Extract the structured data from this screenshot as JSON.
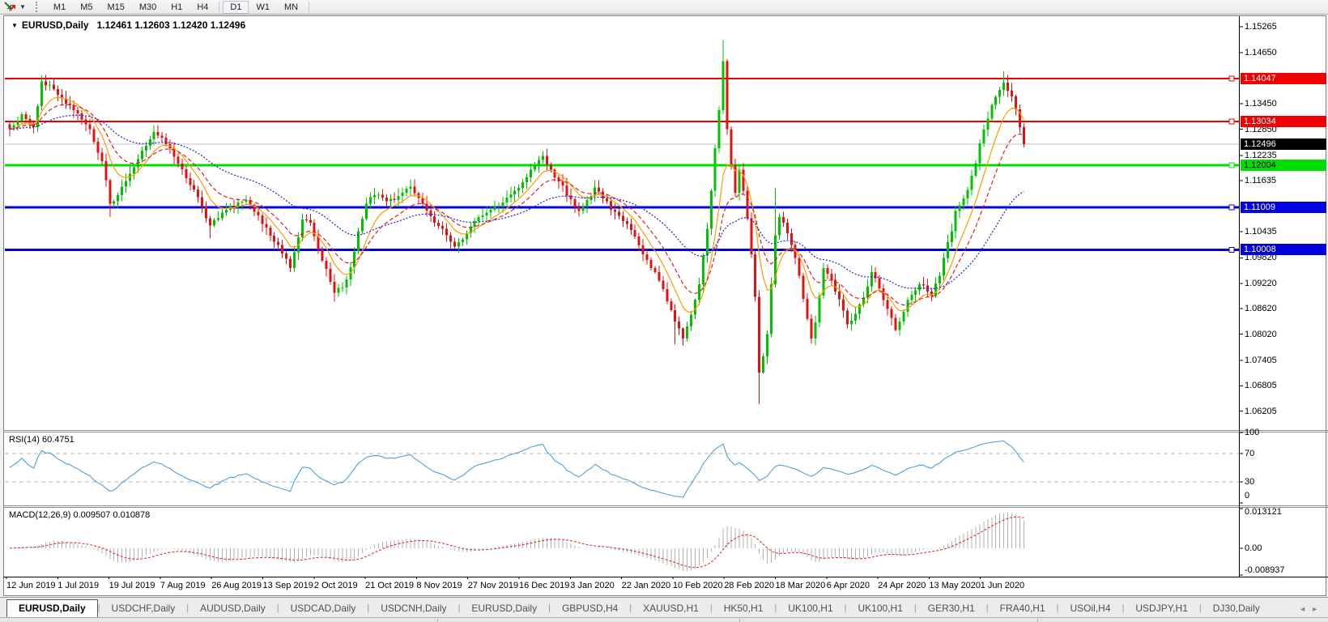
{
  "toolbar": {
    "timeframes": [
      "M1",
      "M5",
      "M15",
      "M30",
      "H1",
      "H4",
      "D1",
      "W1",
      "MN"
    ],
    "active_timeframe": "D1",
    "dropdown_caret": "▼"
  },
  "chart": {
    "symbol_title": "EURUSD,Daily",
    "ohlc_text": "1.12461 1.12603 1.12420 1.12496",
    "collapse_triangle": "▼"
  },
  "chart_data": {
    "type": "candlestick",
    "title": "EURUSD,Daily",
    "ohlc": {
      "open": 1.12461,
      "high": 1.12603,
      "low": 1.1242,
      "close": 1.12496
    },
    "candle_count": 254,
    "up_color": "#00c200",
    "down_color": "#e01212",
    "ylim": [
      1.0582,
      1.156
    ],
    "y_ticks": [
      1.15265,
      1.1465,
      1.1345,
      1.1285,
      1.12235,
      1.11635,
      1.10435,
      1.0982,
      1.0922,
      1.0862,
      1.0802,
      1.07405,
      1.06805,
      1.06205
    ],
    "x_tick_labels": [
      "12 Jun 2019",
      "1 Jul 2019",
      "19 Jul 2019",
      "7 Aug 2019",
      "26 Aug 2019",
      "13 Sep 2019",
      "2 Oct 2019",
      "21 Oct 2019",
      "8 Nov 2019",
      "27 Nov 2019",
      "16 Dec 2019",
      "3 Jan 2020",
      "22 Jan 2020",
      "10 Feb 2020",
      "28 Feb 2020",
      "18 Mar 2020",
      "6 Apr 2020",
      "24 Apr 2020",
      "13 May 2020",
      "1 Jun 2020"
    ],
    "levels": [
      {
        "value": 1.14047,
        "label": "1.14047",
        "color": "#f00000",
        "text": "#ffffff",
        "width": 2
      },
      {
        "value": 1.13034,
        "label": "1.13034",
        "color": "#f00000",
        "text": "#ffffff",
        "width": 2
      },
      {
        "value": 1.12004,
        "label": "1.12004",
        "color": "#00dd00",
        "text": "#000000",
        "width": 3
      },
      {
        "value": 1.11009,
        "label": "1.11009",
        "color": "#0000e0",
        "text": "#ffffff",
        "width": 3
      },
      {
        "value": 1.10008,
        "label": "1.10008",
        "color": "#0000e0",
        "text": "#ffffff",
        "width": 3
      }
    ],
    "current_price": {
      "value": 1.12496,
      "label": "1.12496",
      "line_color": "#c0c0c0",
      "tag_bg": "#000000",
      "tag_fg": "#ffffff"
    },
    "moving_averages": [
      {
        "name": "fast-ma",
        "period": 8,
        "color": "#ff9c00",
        "style": "solid"
      },
      {
        "name": "medium-ma",
        "period": 15,
        "color": "#e02020",
        "style": "dash"
      },
      {
        "name": "slow-ma",
        "period": 40,
        "color": "#2020cc",
        "style": "dot"
      }
    ],
    "price_anchors": [
      [
        0,
        1.1285
      ],
      [
        3,
        1.132
      ],
      [
        6,
        1.129
      ],
      [
        8,
        1.1398
      ],
      [
        11,
        1.138
      ],
      [
        13,
        1.1358
      ],
      [
        16,
        1.133
      ],
      [
        20,
        1.1285
      ],
      [
        23,
        1.121
      ],
      [
        25,
        1.111
      ],
      [
        27,
        1.113
      ],
      [
        30,
        1.118
      ],
      [
        33,
        1.1235
      ],
      [
        36,
        1.1278
      ],
      [
        39,
        1.125
      ],
      [
        41,
        1.122
      ],
      [
        44,
        1.117
      ],
      [
        47,
        1.1125
      ],
      [
        50,
        1.1058
      ],
      [
        52,
        1.1075
      ],
      [
        54,
        1.1095
      ],
      [
        57,
        1.1112
      ],
      [
        59,
        1.1118
      ],
      [
        61,
        1.109
      ],
      [
        63,
        1.1062
      ],
      [
        66,
        1.102
      ],
      [
        68,
        1.0992
      ],
      [
        70,
        1.0958
      ],
      [
        72,
        1.103
      ],
      [
        73,
        1.1072
      ],
      [
        75,
        1.1065
      ],
      [
        78,
        1.0975
      ],
      [
        81,
        1.09
      ],
      [
        83,
        1.0912
      ],
      [
        85,
        1.096
      ],
      [
        87,
        1.1045
      ],
      [
        89,
        1.111
      ],
      [
        91,
        1.113
      ],
      [
        94,
        1.1115
      ],
      [
        97,
        1.1128
      ],
      [
        100,
        1.115
      ],
      [
        103,
        1.111
      ],
      [
        106,
        1.1065
      ],
      [
        109,
        1.1035
      ],
      [
        111,
        1.1008
      ],
      [
        114,
        1.104
      ],
      [
        117,
        1.1078
      ],
      [
        120,
        1.1095
      ],
      [
        123,
        1.1112
      ],
      [
        126,
        1.114
      ],
      [
        129,
        1.1172
      ],
      [
        131,
        1.12
      ],
      [
        133,
        1.1222
      ],
      [
        135,
        1.119
      ],
      [
        137,
        1.1162
      ],
      [
        140,
        1.112
      ],
      [
        142,
        1.1092
      ],
      [
        144,
        1.1118
      ],
      [
        146,
        1.1148
      ],
      [
        148,
        1.1122
      ],
      [
        151,
        1.109
      ],
      [
        154,
        1.1062
      ],
      [
        156,
        1.1032
      ],
      [
        158,
        1.099
      ],
      [
        161,
        1.0948
      ],
      [
        164,
        1.088
      ],
      [
        166,
        1.0832
      ],
      [
        168,
        1.0792
      ],
      [
        170,
        1.0848
      ],
      [
        172,
        1.092
      ],
      [
        174,
        1.105
      ],
      [
        175,
        1.114
      ],
      [
        176,
        1.124
      ],
      [
        177,
        1.133
      ],
      [
        178,
        1.1445
      ],
      [
        179,
        1.1285
      ],
      [
        180,
        1.12
      ],
      [
        181,
        1.1135
      ],
      [
        182,
        1.119
      ],
      [
        183,
        1.114
      ],
      [
        184,
        1.1075
      ],
      [
        185,
        1.099
      ],
      [
        186,
        1.089
      ],
      [
        187,
        1.0712
      ],
      [
        188,
        1.075
      ],
      [
        189,
        1.0802
      ],
      [
        190,
        1.092
      ],
      [
        191,
        1.1035
      ],
      [
        192,
        1.1078
      ],
      [
        194,
        1.104
      ],
      [
        195,
        1.1012
      ],
      [
        197,
        1.094
      ],
      [
        198,
        1.0885
      ],
      [
        200,
        1.0792
      ],
      [
        201,
        1.083
      ],
      [
        203,
        1.0958
      ],
      [
        205,
        1.093
      ],
      [
        206,
        1.0902
      ],
      [
        208,
        1.0858
      ],
      [
        209,
        1.0825
      ],
      [
        211,
        1.085
      ],
      [
        212,
        1.0872
      ],
      [
        214,
        1.0915
      ],
      [
        215,
        1.0948
      ],
      [
        217,
        1.091
      ],
      [
        218,
        1.0882
      ],
      [
        220,
        1.084
      ],
      [
        221,
        1.0812
      ],
      [
        223,
        1.0855
      ],
      [
        224,
        1.0882
      ],
      [
        226,
        1.0905
      ],
      [
        227,
        1.092
      ],
      [
        229,
        1.0902
      ],
      [
        230,
        1.0892
      ],
      [
        232,
        1.094
      ],
      [
        233,
        1.0982
      ],
      [
        235,
        1.1045
      ],
      [
        236,
        1.1092
      ],
      [
        238,
        1.1122
      ],
      [
        239,
        1.1142
      ],
      [
        241,
        1.1205
      ],
      [
        242,
        1.1252
      ],
      [
        244,
        1.131
      ],
      [
        245,
        1.1342
      ],
      [
        247,
        1.1378
      ],
      [
        248,
        1.1395
      ],
      [
        250,
        1.1362
      ],
      [
        251,
        1.1332
      ],
      [
        252,
        1.129
      ],
      [
        253,
        1.12496
      ]
    ],
    "wick_overrides": [
      {
        "i": 8,
        "high": 1.1412
      },
      {
        "i": 25,
        "low": 1.1078
      },
      {
        "i": 50,
        "low": 1.1027
      },
      {
        "i": 81,
        "low": 1.0879
      },
      {
        "i": 166,
        "low": 1.0778
      },
      {
        "i": 178,
        "high": 1.1495
      },
      {
        "i": 187,
        "low": 1.0637
      },
      {
        "i": 191,
        "high": 1.1147
      },
      {
        "i": 248,
        "high": 1.1422
      }
    ],
    "rsi": {
      "label": "RSI(14) 60.4751",
      "name": "RSI(14)",
      "value_text": "60.4751",
      "period": 14,
      "color": "#4da0dd",
      "range": [
        0,
        100
      ],
      "ticks": [
        100,
        70,
        30,
        0
      ],
      "level_lines": [
        70,
        30
      ]
    },
    "macd": {
      "label": "MACD(12,26,9) 0.009507 0.010878",
      "name": "MACD(12,26,9)",
      "values_text": "0.009507 0.010878",
      "fast": 12,
      "slow": 26,
      "signal": 9,
      "histogram_color": "#b2b2b2",
      "signal_color": "#e02020",
      "range": [
        0.013121,
        -0.008937
      ],
      "ticks": [
        {
          "label": "0.013121",
          "value": 0.013121
        },
        {
          "label": "0.00",
          "value": 0
        },
        {
          "label": "-0.008937",
          "value": -0.008937
        }
      ]
    }
  },
  "tabbar": {
    "tabs": [
      "EURUSD,Daily",
      "USDCHF,Daily",
      "AUDUSD,Daily",
      "USDCAD,Daily",
      "USDCNH,Daily",
      "EURUSD,Daily",
      "GBPUSD,H4",
      "XAUUSD,H1",
      "HK50,H1",
      "UK100,H1",
      "UK100,H1",
      "GER30,H1",
      "FRA40,H1",
      "USOil,H4",
      "USDJPY,H1",
      "DJ30,Daily"
    ],
    "active_index": 0,
    "left_arrow": "◄",
    "right_arrow": "►"
  }
}
